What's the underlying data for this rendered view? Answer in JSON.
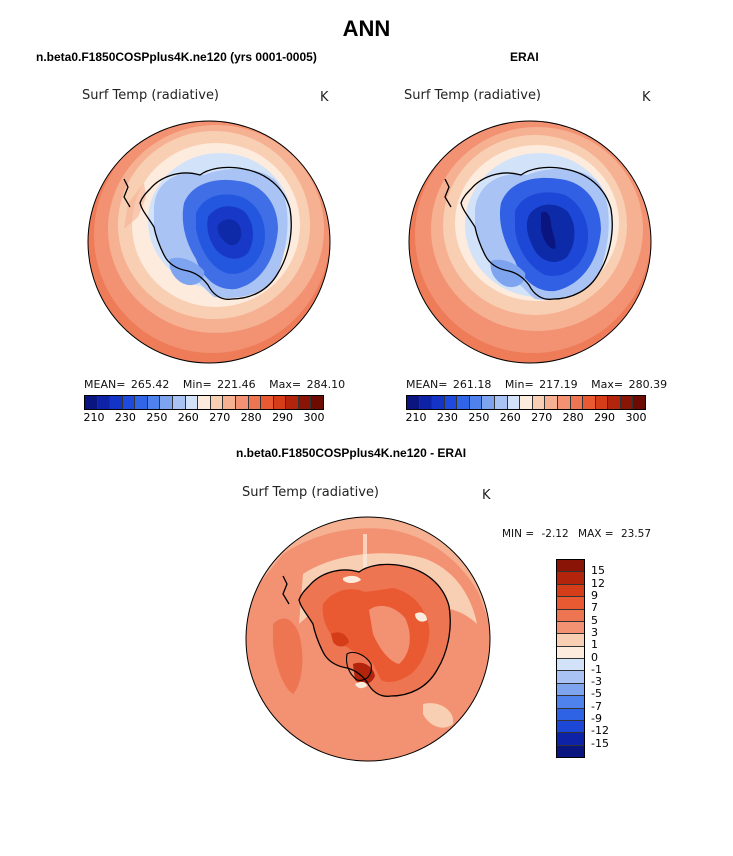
{
  "title": "ANN",
  "panels": {
    "model": {
      "case_title": "n.beta0.F1850COSPplus4K.ne120 (yrs 0001-0005)",
      "variable": "Surf Temp (radiative)",
      "units": "K",
      "mean_label": "MEAN=",
      "mean": "265.42",
      "min_label": "Min=",
      "min": "221.46",
      "max_label": "Max=",
      "max": "284.10"
    },
    "obs": {
      "case_title": "ERAI",
      "variable": "Surf Temp (radiative)",
      "units": "K",
      "mean_label": "MEAN=",
      "mean": "261.18",
      "min_label": "Min=",
      "min": "217.19",
      "max_label": "Max=",
      "max": "280.39"
    },
    "diff": {
      "case_title": "n.beta0.F1850COSPplus4K.ne120 - ERAI",
      "variable": "Surf Temp (radiative)",
      "units": "K",
      "min_label": "MIN =",
      "min": "-2.12",
      "max_label": "MAX =",
      "max": "23.57"
    }
  },
  "colorbar_abs": {
    "tick_labels": [
      "210",
      "230",
      "250",
      "260",
      "270",
      "280",
      "290",
      "300"
    ],
    "colors": [
      "#0a1580",
      "#0d22a6",
      "#1334c6",
      "#1f4ae0",
      "#3165e8",
      "#4f82ec",
      "#7ea4f0",
      "#a9c3f4",
      "#d2e2f8",
      "#fdebdd",
      "#f9cfb4",
      "#f5b192",
      "#f39272",
      "#ee7551",
      "#e95a32",
      "#d53c18",
      "#b2240c",
      "#8a1406",
      "#6d0b03"
    ]
  },
  "colorbar_diff": {
    "tick_labels": [
      "15",
      "12",
      "9",
      "7",
      "5",
      "3",
      "1",
      "0",
      "-1",
      "-3",
      "-5",
      "-7",
      "-9",
      "-12",
      "-15"
    ],
    "colors": [
      "#8a1406",
      "#b2240c",
      "#d53c18",
      "#e95a32",
      "#ee7551",
      "#f39272",
      "#f9cfb4",
      "#fdebdd",
      "#d2e2f8",
      "#a9c3f4",
      "#7ea4f0",
      "#4f82ec",
      "#2f63e6",
      "#1d47d6",
      "#0d22a6",
      "#0a1580"
    ]
  }
}
